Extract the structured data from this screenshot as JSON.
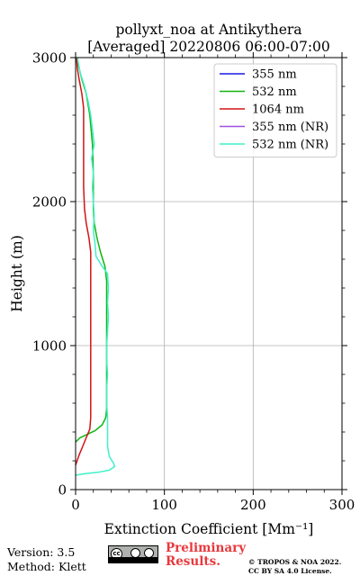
{
  "chart_data": {
    "type": "line",
    "title_lines": [
      "pollyxt_noa at Antikythera",
      "[Averaged] 20220806 06:00-07:00"
    ],
    "xlabel": "Extinction Coefficient [Mm⁻¹]",
    "ylabel": "Height (m)",
    "xlim": [
      0,
      300
    ],
    "ylim": [
      0,
      3000
    ],
    "xticks": [
      0,
      100,
      200,
      300
    ],
    "yticks": [
      0,
      1000,
      2000,
      3000
    ],
    "x_tick_labels": [
      "0",
      "100",
      "200",
      "300"
    ],
    "y_tick_labels": [
      "0",
      "1000",
      "2000",
      "3000"
    ],
    "grid": true,
    "legend_position": "top-right",
    "series": [
      {
        "name": "355 nm",
        "color": "#1a1ae0",
        "points": []
      },
      {
        "name": "532 nm",
        "color": "#11b411",
        "points": [
          [
            0,
            330
          ],
          [
            5,
            360
          ],
          [
            12,
            380
          ],
          [
            22,
            410
          ],
          [
            30,
            450
          ],
          [
            34,
            500
          ],
          [
            35,
            560
          ],
          [
            35,
            700
          ],
          [
            35,
            900
          ],
          [
            35,
            1100
          ],
          [
            35,
            1300
          ],
          [
            35,
            1450
          ],
          [
            33,
            1550
          ],
          [
            28,
            1650
          ],
          [
            24,
            1750
          ],
          [
            21,
            1850
          ],
          [
            20,
            1950
          ],
          [
            20,
            2050
          ],
          [
            20,
            2200
          ],
          [
            19,
            2400
          ],
          [
            16,
            2600
          ],
          [
            12,
            2750
          ],
          [
            7,
            2850
          ],
          [
            3,
            2950
          ],
          [
            1,
            3000
          ]
        ]
      },
      {
        "name": "1064 nm",
        "color": "#d21414",
        "points": [
          [
            0,
            170
          ],
          [
            4,
            240
          ],
          [
            8,
            300
          ],
          [
            12,
            360
          ],
          [
            16,
            420
          ],
          [
            17,
            500
          ],
          [
            17,
            700
          ],
          [
            17,
            900
          ],
          [
            17,
            1100
          ],
          [
            17,
            1300
          ],
          [
            17,
            1500
          ],
          [
            17,
            1650
          ],
          [
            15,
            1750
          ],
          [
            12,
            1850
          ],
          [
            10,
            1950
          ],
          [
            9,
            2100
          ],
          [
            9,
            2300
          ],
          [
            9,
            2500
          ],
          [
            9,
            2650
          ],
          [
            7,
            2750
          ],
          [
            4,
            2850
          ],
          [
            2,
            2920
          ],
          [
            1,
            3000
          ]
        ]
      },
      {
        "name": "355 nm (NR)",
        "color": "#a050e0",
        "points": []
      },
      {
        "name": "532 nm (NR)",
        "color": "#40f0c8",
        "points": [
          [
            0,
            100
          ],
          [
            10,
            110
          ],
          [
            25,
            120
          ],
          [
            38,
            135
          ],
          [
            44,
            160
          ],
          [
            43,
            180
          ],
          [
            38,
            230
          ],
          [
            36,
            300
          ],
          [
            36,
            400
          ],
          [
            36,
            500
          ],
          [
            35,
            600
          ],
          [
            35,
            700
          ],
          [
            36,
            800
          ],
          [
            35,
            900
          ],
          [
            35,
            1000
          ],
          [
            36,
            1100
          ],
          [
            37,
            1200
          ],
          [
            36,
            1300
          ],
          [
            37,
            1400
          ],
          [
            36,
            1500
          ],
          [
            30,
            1550
          ],
          [
            23,
            1620
          ],
          [
            22,
            1700
          ],
          [
            20,
            1800
          ],
          [
            21,
            1900
          ],
          [
            20,
            2000
          ],
          [
            19,
            2100
          ],
          [
            20,
            2200
          ],
          [
            18,
            2300
          ],
          [
            21,
            2400
          ],
          [
            19,
            2500
          ],
          [
            17,
            2600
          ],
          [
            14,
            2700
          ],
          [
            10,
            2800
          ],
          [
            5,
            2900
          ],
          [
            2,
            3000
          ]
        ]
      }
    ]
  },
  "footer": {
    "version": "Version: 3.5",
    "method": "Method: Klett",
    "preliminary_lines": [
      "Preliminary",
      "Results."
    ],
    "license_lines": [
      "© TROPOS & NOA 2022.",
      "CC BY SA 4.0 License."
    ],
    "badge_text": "cc"
  }
}
